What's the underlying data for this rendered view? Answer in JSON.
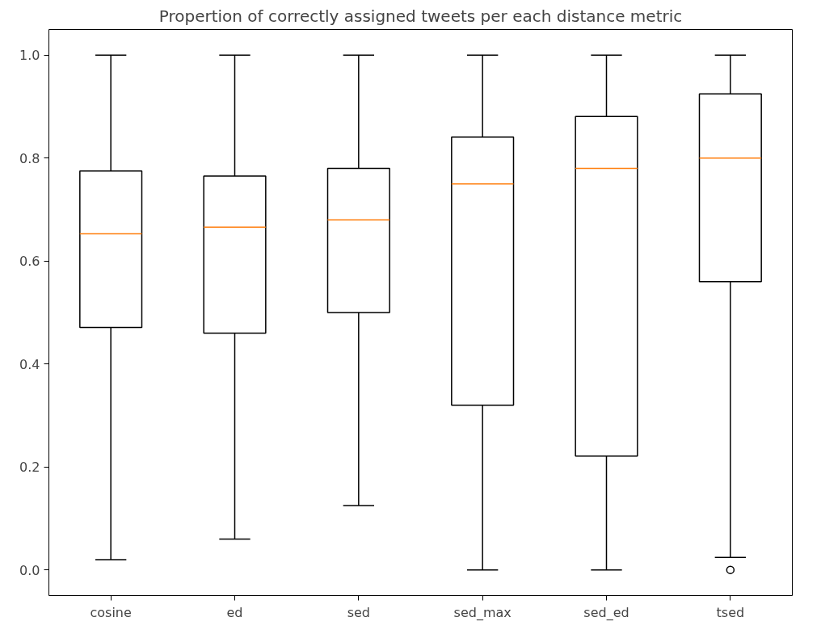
{
  "chart_data": {
    "type": "box",
    "title": "Propertion of correctly assigned tweets per each distance metric",
    "categories": [
      "cosine",
      "ed",
      "sed",
      "sed_max",
      "sed_ed",
      "tsed"
    ],
    "series": [
      {
        "color": "#000000",
        "boxes": [
          {
            "low": 0.02,
            "q1": 0.471,
            "median": 0.653,
            "q3": 0.775,
            "high": 1.0
          },
          {
            "low": 0.06,
            "q1": 0.46,
            "median": 0.666,
            "q3": 0.765,
            "high": 1.0
          },
          {
            "low": 0.125,
            "q1": 0.5,
            "median": 0.68,
            "q3": 0.78,
            "high": 1.0
          },
          {
            "low": 0.0,
            "q1": 0.32,
            "median": 0.75,
            "q3": 0.841,
            "high": 1.0
          },
          {
            "low": 0.0,
            "q1": 0.221,
            "median": 0.78,
            "q3": 0.881,
            "high": 1.0
          },
          {
            "low": 0.024,
            "q1": 0.56,
            "median": 0.8,
            "q3": 0.925,
            "high": 1.0,
            "outliers": [
              0.0
            ]
          }
        ]
      }
    ],
    "ylim": [
      -0.05,
      1.05
    ],
    "yticks": [
      {
        "value": 0,
        "label": "0.0"
      },
      {
        "value": 0.2,
        "label": "0.2"
      },
      {
        "value": 0.4,
        "label": "0.4"
      },
      {
        "value": 0.6,
        "label": "0.6"
      },
      {
        "value": 0.8,
        "label": "0.8"
      },
      {
        "value": 1,
        "label": "1.0"
      }
    ],
    "grid": false,
    "marker": "circle"
  }
}
